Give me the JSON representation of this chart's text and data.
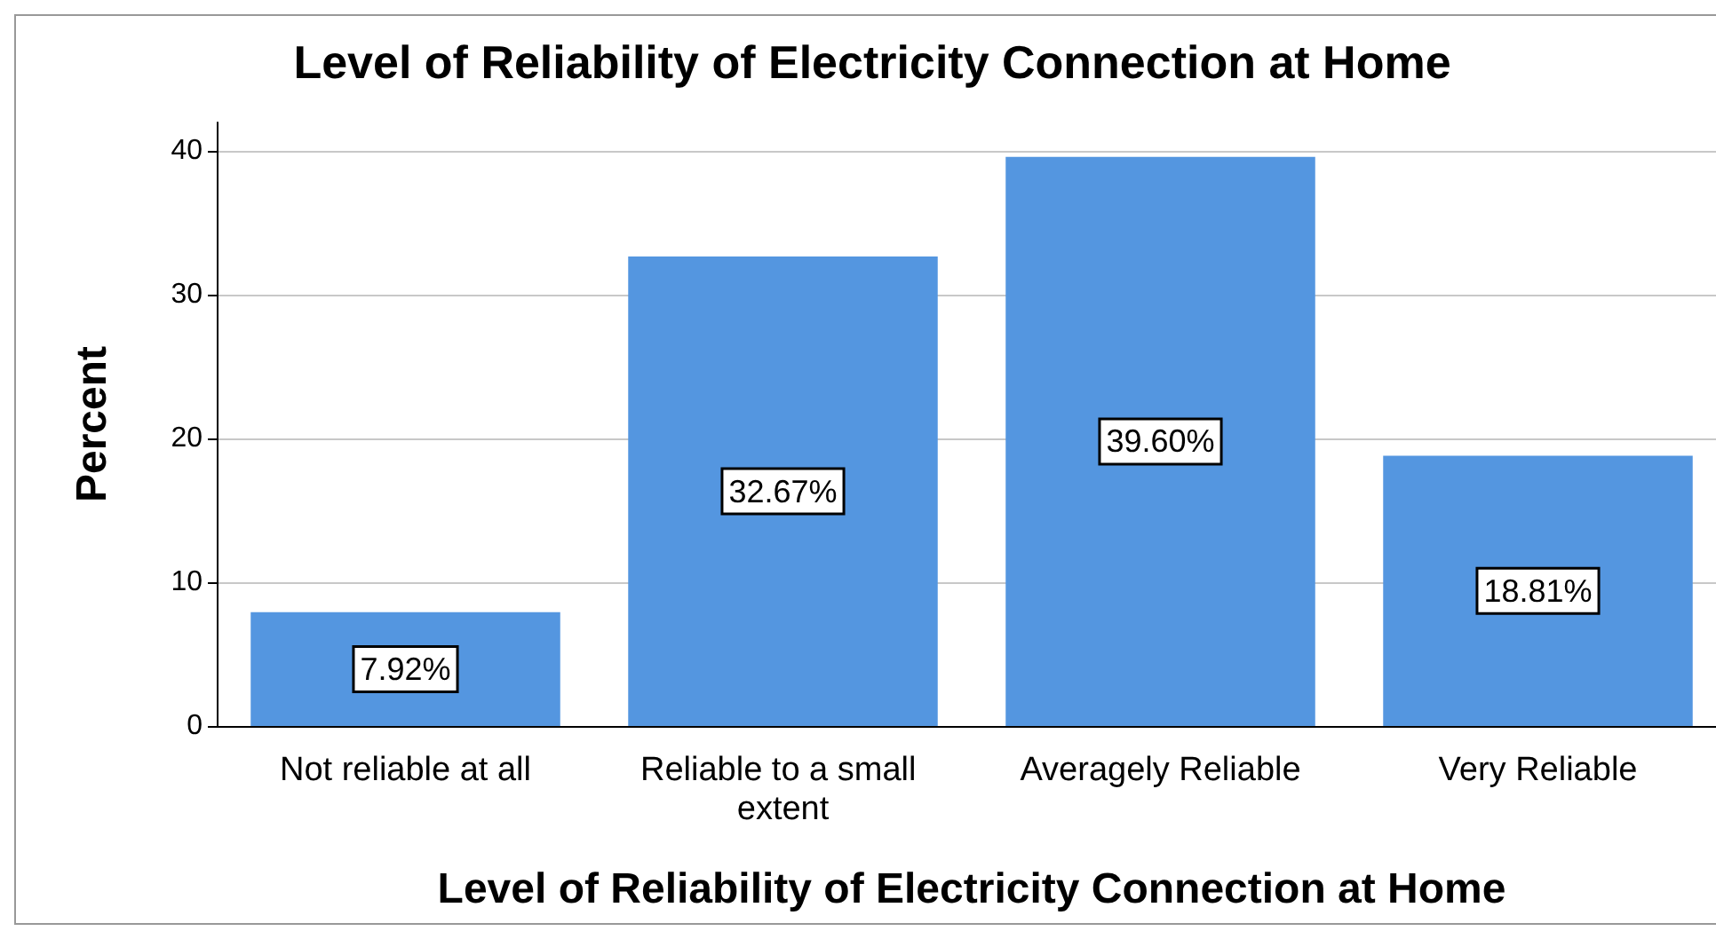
{
  "chart_data": {
    "type": "bar",
    "title": "Level of Reliability of Electricity Connection at Home",
    "xlabel": "Level of Reliability of Electricity Connection at Home",
    "ylabel": "Percent",
    "categories": [
      "Not reliable at all",
      "Reliable to a small extent",
      "Averagely Reliable",
      "Very Reliable"
    ],
    "values": [
      7.92,
      32.67,
      39.6,
      18.81
    ],
    "value_labels": [
      "7.92%",
      "32.67%",
      "39.60%",
      "18.81%"
    ],
    "color": "#5496e0",
    "ylim": [
      0,
      42
    ],
    "yticks": [
      0,
      10,
      20,
      30,
      40
    ],
    "grid": "y"
  }
}
